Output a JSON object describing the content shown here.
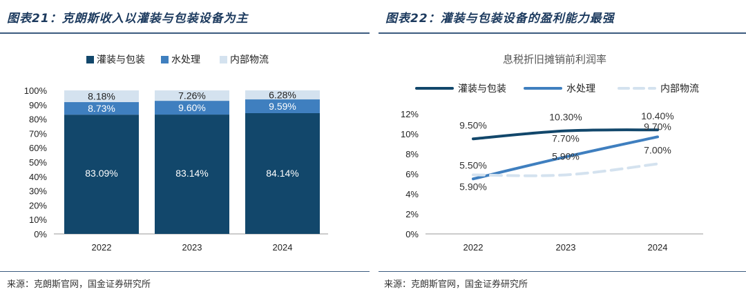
{
  "left": {
    "title": "图表21：克朗斯收入以灌装与包装设备为主",
    "source": "来源：克朗斯官网，国金证券研究所"
  },
  "right": {
    "title": "图表22：灌装与包装设备的盈利能力最强",
    "source": "来源：克朗斯官网，国金证券研究所"
  },
  "chart_data": [
    {
      "type": "bar",
      "stacked": true,
      "title": "",
      "categories": [
        "2022",
        "2023",
        "2024"
      ],
      "series": [
        {
          "name": "灌装与包装",
          "values": [
            83.09,
            83.14,
            84.14
          ],
          "labels": [
            "83.09%",
            "83.14%",
            "84.14%"
          ],
          "color": "#12476b"
        },
        {
          "name": "水处理",
          "values": [
            8.73,
            9.6,
            9.59
          ],
          "labels": [
            "8.73%",
            "9.60%",
            "9.59%"
          ],
          "color": "#3f7fbf"
        },
        {
          "name": "内部物流",
          "values": [
            8.18,
            7.26,
            6.28
          ],
          "labels": [
            "8.18%",
            "7.26%",
            "6.28%"
          ],
          "color": "#d4e2ef"
        }
      ],
      "ylim": [
        0,
        100
      ],
      "yticks": [
        "0%",
        "10%",
        "20%",
        "30%",
        "40%",
        "50%",
        "60%",
        "70%",
        "80%",
        "90%",
        "100%"
      ],
      "legend_position": "top",
      "grid": false
    },
    {
      "type": "line",
      "title": "息税折旧摊销前利润率",
      "x": [
        "2022",
        "2023",
        "2024"
      ],
      "series": [
        {
          "name": "灌装与包装",
          "values": [
            9.5,
            10.3,
            10.4
          ],
          "labels": [
            "9.50%",
            "10.30%",
            "10.40%"
          ],
          "color": "#12476b",
          "style": "solid"
        },
        {
          "name": "水处理",
          "values": [
            5.5,
            7.7,
            9.7
          ],
          "labels": [
            "5.50%",
            "7.70%",
            "9.70%"
          ],
          "color": "#3f7fbf",
          "style": "solid"
        },
        {
          "name": "内部物流",
          "values": [
            5.9,
            5.9,
            7.0
          ],
          "labels": [
            "5.90%",
            "5.90%",
            "7.00%"
          ],
          "color": "#d4e2ef",
          "style": "dashed"
        }
      ],
      "ylim": [
        0,
        12
      ],
      "yticks": [
        "0%",
        "2%",
        "4%",
        "6%",
        "8%",
        "10%",
        "12%"
      ],
      "legend_position": "top",
      "grid": false
    }
  ]
}
